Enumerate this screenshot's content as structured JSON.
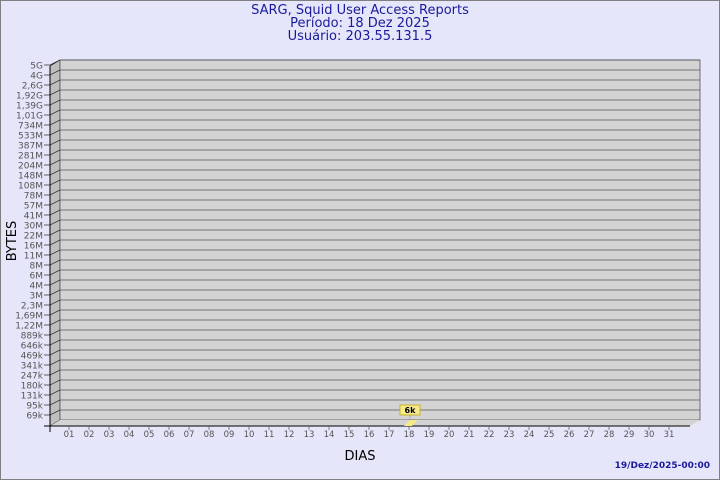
{
  "header": {
    "title": "SARG, Squid User Access Reports",
    "period": "Período: 18 Dez 2025",
    "user": "Usuário: 203.55.131.5"
  },
  "footer": {
    "timestamp": "19/Dez/2025-00:00"
  },
  "colors": {
    "background": "#e6e6fa",
    "plot": "#d3d3d3",
    "title": "#1a1a9c",
    "bar": "#f5e98a"
  },
  "chart_data": {
    "type": "bar",
    "xlabel": "DIAS",
    "ylabel": "BYTES",
    "y_scale": "log",
    "grid": true,
    "y_ticks": [
      "5G",
      "4G",
      "2,6G",
      "1,92G",
      "1,39G",
      "1,01G",
      "734M",
      "533M",
      "387M",
      "281M",
      "204M",
      "148M",
      "108M",
      "78M",
      "57M",
      "41M",
      "30M",
      "22M",
      "16M",
      "11M",
      "8M",
      "6M",
      "4M",
      "3M",
      "2,3M",
      "1,69M",
      "1,22M",
      "889k",
      "646k",
      "469k",
      "341k",
      "247k",
      "180k",
      "131k",
      "95k",
      "69k"
    ],
    "categories": [
      "01",
      "02",
      "03",
      "04",
      "05",
      "06",
      "07",
      "08",
      "09",
      "10",
      "11",
      "12",
      "13",
      "14",
      "15",
      "16",
      "17",
      "18",
      "19",
      "20",
      "21",
      "22",
      "23",
      "24",
      "25",
      "26",
      "27",
      "28",
      "29",
      "30",
      "31"
    ],
    "series": [
      {
        "points": [
          {
            "x": "18",
            "value": 6000,
            "label": "6k"
          }
        ]
      }
    ]
  }
}
